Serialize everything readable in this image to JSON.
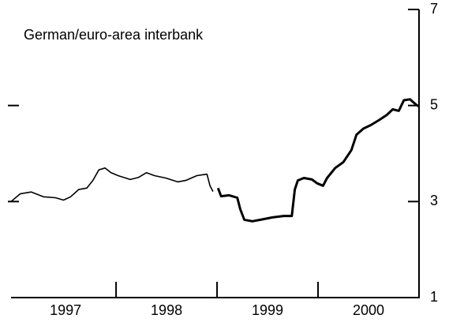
{
  "chart_data": {
    "type": "line",
    "title": "German/euro-area interbank",
    "categories": [
      "1997",
      "1998",
      "1999",
      "2000"
    ],
    "x": [
      1996.96,
      1997.05,
      1997.16,
      1997.28,
      1997.4,
      1997.48,
      1997.55,
      1997.63,
      1997.71,
      1997.77,
      1997.83,
      1997.89,
      1997.95,
      1998.02,
      1998.14,
      1998.22,
      1998.3,
      1998.38,
      1998.49,
      1998.61,
      1998.69,
      1998.8,
      1998.9,
      1998.93,
      1998.96,
      1998.99,
      1999.01,
      1999.04,
      1999.12,
      1999.2,
      1999.23,
      1999.27,
      1999.35,
      1999.43,
      1999.55,
      1999.66,
      1999.74,
      1999.77,
      1999.8,
      1999.86,
      1999.94,
      1999.99,
      2000.05,
      2000.09,
      2000.17,
      2000.25,
      2000.33,
      2000.38,
      2000.45,
      2000.52,
      2000.6,
      2000.68,
      2000.74,
      2000.8,
      2000.85,
      2000.91,
      2000.97,
      2001.0
    ],
    "values": [
      3.0,
      3.16,
      3.2,
      3.1,
      3.08,
      3.03,
      3.1,
      3.25,
      3.28,
      3.44,
      3.66,
      3.7,
      3.6,
      3.54,
      3.46,
      3.5,
      3.6,
      3.54,
      3.49,
      3.41,
      3.44,
      3.54,
      3.57,
      3.33,
      3.21,
      null,
      3.28,
      3.11,
      3.13,
      3.08,
      2.84,
      2.62,
      2.59,
      2.62,
      2.67,
      2.7,
      2.7,
      3.25,
      3.44,
      3.49,
      3.46,
      3.38,
      3.33,
      3.49,
      3.7,
      3.82,
      4.07,
      4.39,
      4.52,
      4.59,
      4.69,
      4.8,
      4.92,
      4.89,
      5.11,
      5.13,
      5.02,
      4.98
    ],
    "color": "#000000",
    "xlim": [
      1996.96,
      2001.0
    ],
    "xticks": [
      1998,
      1999,
      2000
    ],
    "ylim": [
      1,
      7
    ],
    "yticks": [
      1,
      3,
      5,
      7
    ]
  }
}
